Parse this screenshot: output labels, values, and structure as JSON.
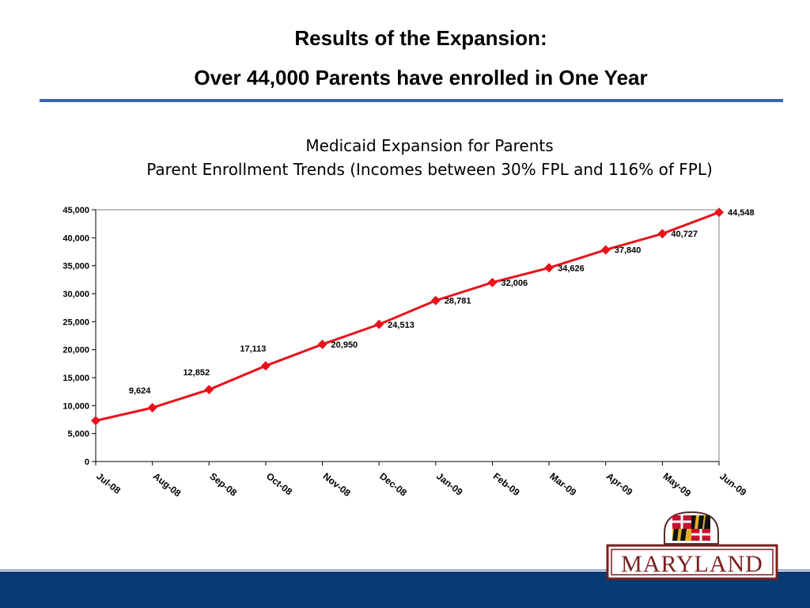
{
  "slide": {
    "title_line1": "Results of the Expansion:",
    "title_line2": "Over 44,000 Parents have enrolled in One Year",
    "logo_text": "MARYLAND"
  },
  "colors": {
    "title_rule": "#3a63b4",
    "series": "#e8121b",
    "footer": "#073b73"
  },
  "chart_data": {
    "type": "line",
    "title": "Medicaid Expansion for Parents",
    "subtitle": "Parent Enrollment Trends  (Incomes between 30% FPL and 116% of FPL)",
    "categories": [
      "Jul-08",
      "Aug-08",
      "Sep-08",
      "Oct-08",
      "Nov-08",
      "Dec-08",
      "Jan-09",
      "Feb-09",
      "Mar-09",
      "Apr-09",
      "May-09",
      "Jun-09"
    ],
    "series": [
      {
        "values": [
          7300,
          9624,
          12852,
          17113,
          20950,
          24513,
          28781,
          32006,
          34626,
          37840,
          40727,
          44548
        ],
        "labels": [
          "",
          "9,624",
          "12,852",
          "17,113",
          "20,950",
          "24,513",
          "28,781",
          "32,006",
          "34,626",
          "37,840",
          "40,727",
          "44,548"
        ]
      }
    ],
    "ylim": [
      0,
      45000
    ],
    "yticks": [
      0,
      5000,
      10000,
      15000,
      20000,
      25000,
      30000,
      35000,
      40000,
      45000
    ],
    "ytick_labels": [
      "0",
      "5,000",
      "10,000",
      "15,000",
      "20,000",
      "25,000",
      "30,000",
      "35,000",
      "40,000",
      "45,000"
    ],
    "grid": false,
    "legend": "none",
    "marker": "diamond"
  }
}
